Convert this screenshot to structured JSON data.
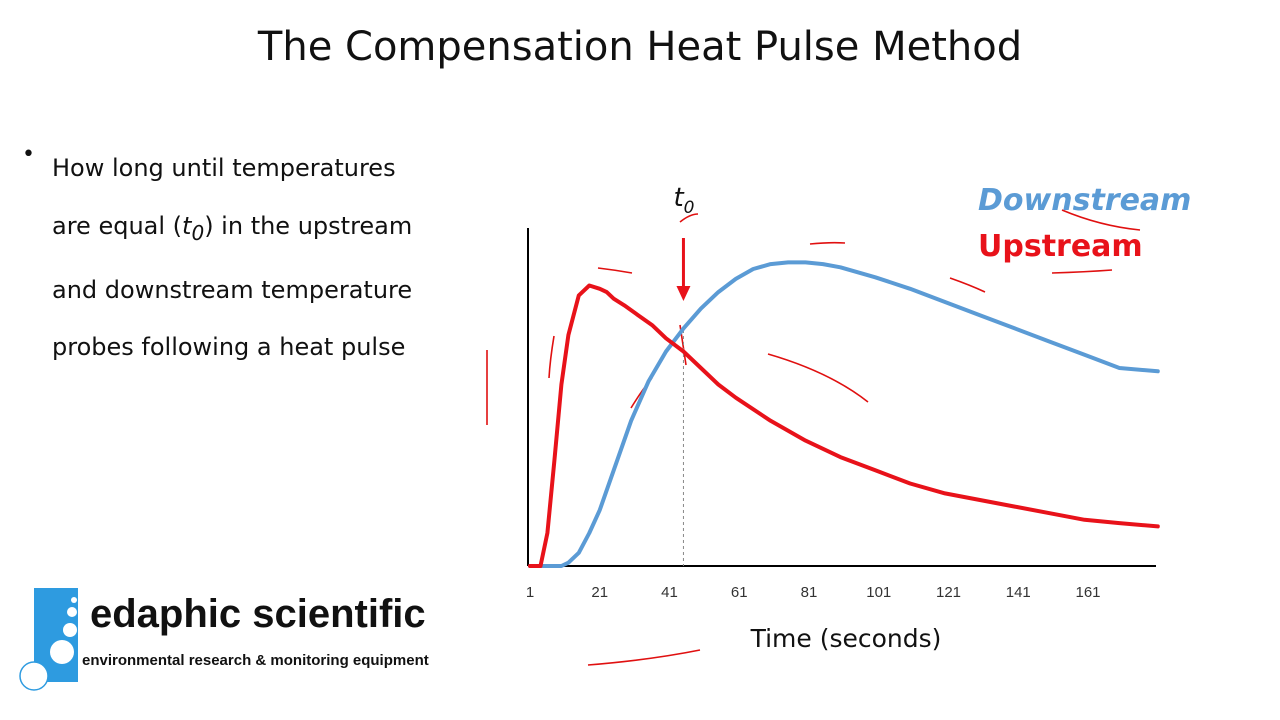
{
  "slide": {
    "title": "The Compensation Heat Pulse Method",
    "bullet_lines": [
      "How long until temperatures",
      "are equal (",
      "t0",
      ") in the upstream",
      "and downstream temperature",
      "probes following a heat pulse"
    ],
    "bullet_t_sub": "0",
    "bullet_t": "t"
  },
  "logo": {
    "name": "edaphic scientific",
    "tagline": "environmental research & monitoring equipment"
  },
  "chart_data": {
    "type": "line",
    "title": "",
    "xlabel": "Time (seconds)",
    "ylabel": "",
    "x_ticks": [
      1,
      21,
      41,
      61,
      81,
      101,
      121,
      141,
      161
    ],
    "xlim": [
      1,
      181
    ],
    "ylim": [
      0,
      1
    ],
    "marker_label": "t",
    "marker_sub": "0",
    "marker_x": 45,
    "series": [
      {
        "name": "Downstream",
        "color": "#5b9bd5",
        "x": [
          1,
          10,
          12,
          15,
          18,
          21,
          25,
          30,
          35,
          40,
          45,
          50,
          55,
          60,
          65,
          70,
          75,
          80,
          85,
          90,
          100,
          110,
          120,
          130,
          140,
          150,
          160,
          170,
          181
        ],
        "y": [
          0,
          0,
          0.01,
          0.04,
          0.1,
          0.17,
          0.29,
          0.44,
          0.56,
          0.65,
          0.72,
          0.78,
          0.83,
          0.87,
          0.9,
          0.915,
          0.92,
          0.92,
          0.915,
          0.905,
          0.875,
          0.84,
          0.8,
          0.76,
          0.72,
          0.68,
          0.64,
          0.6,
          0.59
        ]
      },
      {
        "name": "Upstream",
        "color": "#e8121a",
        "x": [
          1,
          4,
          6,
          8,
          10,
          12,
          15,
          18,
          21,
          23,
          25,
          28,
          32,
          36,
          40,
          45,
          50,
          55,
          60,
          70,
          80,
          90,
          100,
          110,
          120,
          130,
          140,
          150,
          160,
          170,
          181
        ],
        "y": [
          0,
          0,
          0.1,
          0.32,
          0.55,
          0.7,
          0.82,
          0.85,
          0.84,
          0.83,
          0.81,
          0.79,
          0.76,
          0.73,
          0.69,
          0.65,
          0.6,
          0.55,
          0.51,
          0.44,
          0.38,
          0.33,
          0.29,
          0.25,
          0.22,
          0.2,
          0.18,
          0.16,
          0.14,
          0.13,
          0.12
        ]
      }
    ]
  }
}
